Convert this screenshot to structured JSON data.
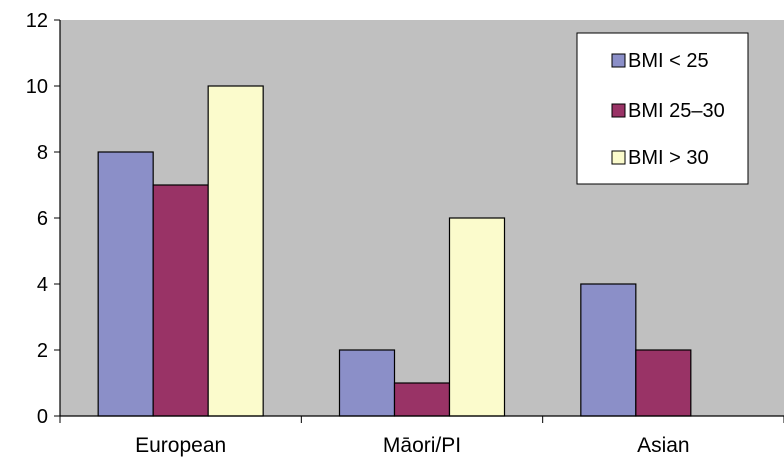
{
  "chart_data": {
    "type": "bar",
    "categories": [
      "European",
      "Māori/PI",
      "Asian"
    ],
    "series": [
      {
        "name": "BMI < 25",
        "values": [
          8,
          2,
          4
        ],
        "color": "#8b8fc8"
      },
      {
        "name": "BMI 25–30",
        "values": [
          7,
          1,
          2
        ],
        "color": "#993366"
      },
      {
        "name": "BMI > 30",
        "values": [
          10,
          6,
          0
        ],
        "color": "#fbfbcc"
      }
    ],
    "ylim": [
      0,
      12
    ],
    "yticks": [
      0,
      2,
      4,
      6,
      8,
      10,
      12
    ],
    "grid": false,
    "legend_position": "top-right",
    "plot_background": "#c0c0c0"
  }
}
